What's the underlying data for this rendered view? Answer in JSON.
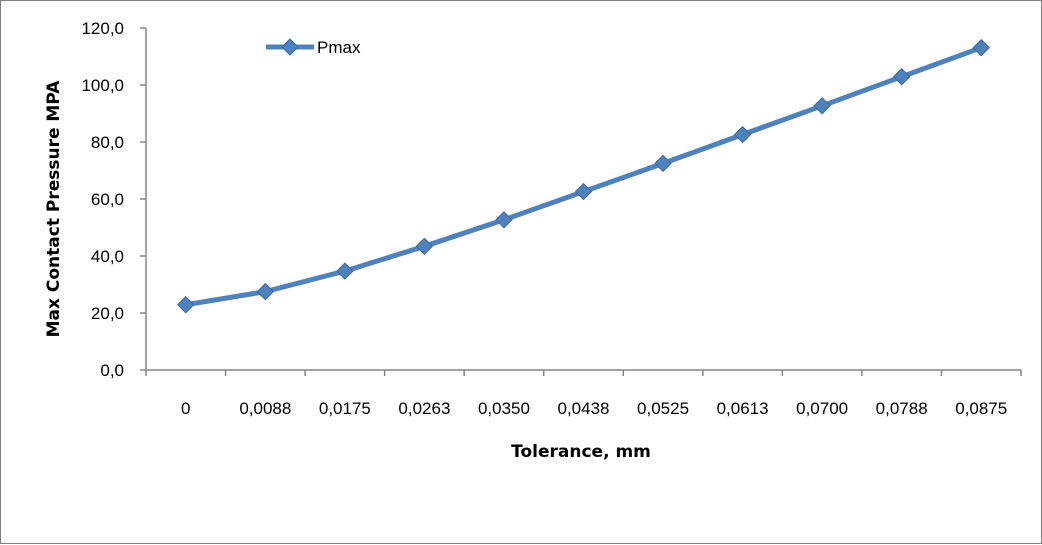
{
  "chart_data": {
    "type": "line",
    "xlabel": "Tolerance, mm",
    "ylabel": "Max Contact Pressure MPA",
    "categories": [
      "0",
      "0,0088",
      "0,0175",
      "0,0263",
      "0,0350",
      "0,0438",
      "0,0525",
      "0,0613",
      "0,0700",
      "0,0788",
      "0,0875"
    ],
    "series": [
      {
        "name": "Pmax",
        "values": [
          22.9,
          27.5,
          34.7,
          43.4,
          52.7,
          62.6,
          72.5,
          82.6,
          92.7,
          102.9,
          113.1
        ],
        "color": "#4f81bd"
      }
    ],
    "ylim": [
      0,
      120
    ],
    "yticks": [
      "0,0",
      "20,0",
      "40,0",
      "60,0",
      "80,0",
      "100,0",
      "120,0"
    ],
    "grid": false,
    "legend_position": "top-left"
  }
}
